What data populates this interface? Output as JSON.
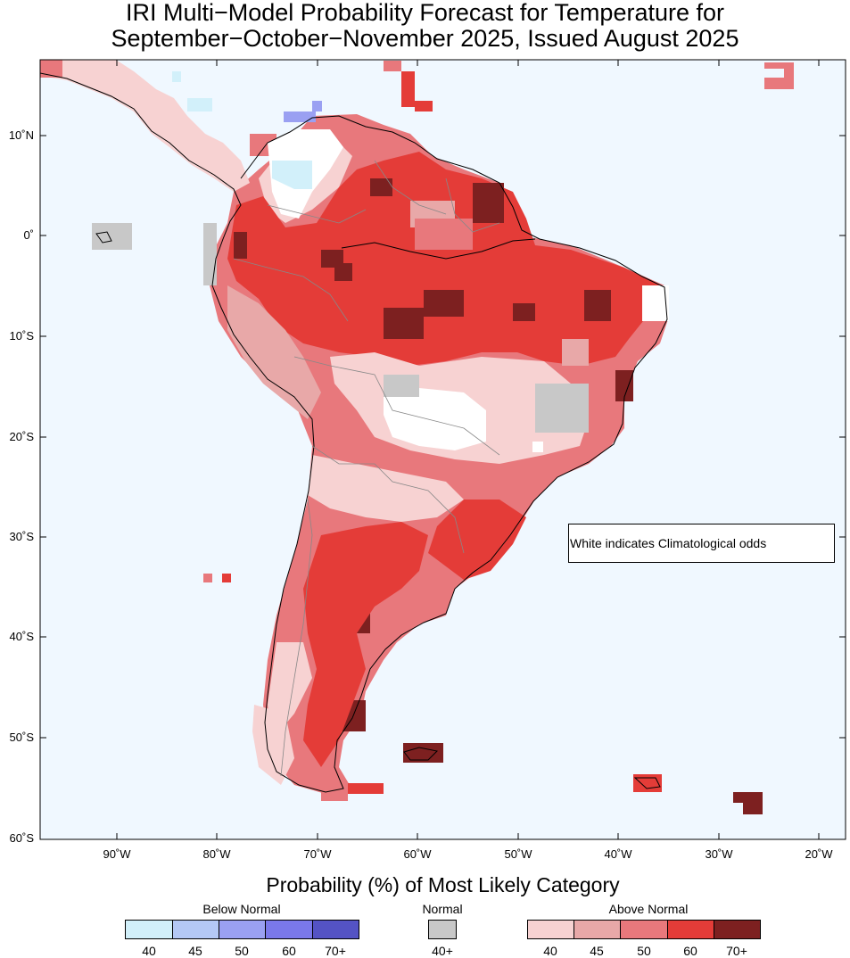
{
  "title_line1": "IRI Multi−Model Probability Forecast for Temperature for",
  "title_line2": "September−October−November 2025, Issued August 2025",
  "lat_labels": [
    "10˚N",
    "0˚",
    "10˚S",
    "20˚S",
    "30˚S",
    "40˚S",
    "50˚S",
    "60˚S"
  ],
  "lon_labels": [
    "90˚W",
    "80˚W",
    "70˚W",
    "60˚W",
    "50˚W",
    "40˚W",
    "30˚W",
    "20˚W"
  ],
  "note": "White indicates Climatological odds",
  "legend": {
    "title": "Probability (%) of Most Likely Category",
    "below_normal": {
      "label": "Below Normal",
      "ticks": [
        "40",
        "45",
        "50",
        "60",
        "70+"
      ],
      "colors": [
        "#d2f0fa",
        "#b4c8f5",
        "#9aa0f2",
        "#7a78ea",
        "#5453c4"
      ]
    },
    "normal": {
      "label": "Normal",
      "ticks": [
        "40+"
      ],
      "colors": [
        "#c8c8c8"
      ]
    },
    "above_normal": {
      "label": "Above Normal",
      "ticks": [
        "40",
        "45",
        "50",
        "60",
        "70+"
      ],
      "colors": [
        "#f7d2d2",
        "#e8a8a8",
        "#e8787c",
        "#e43c38",
        "#7d2020"
      ]
    }
  },
  "map": {
    "ocean_color": "#f0f8ff",
    "climatology_color": "#ffffff",
    "region": "South America"
  }
}
